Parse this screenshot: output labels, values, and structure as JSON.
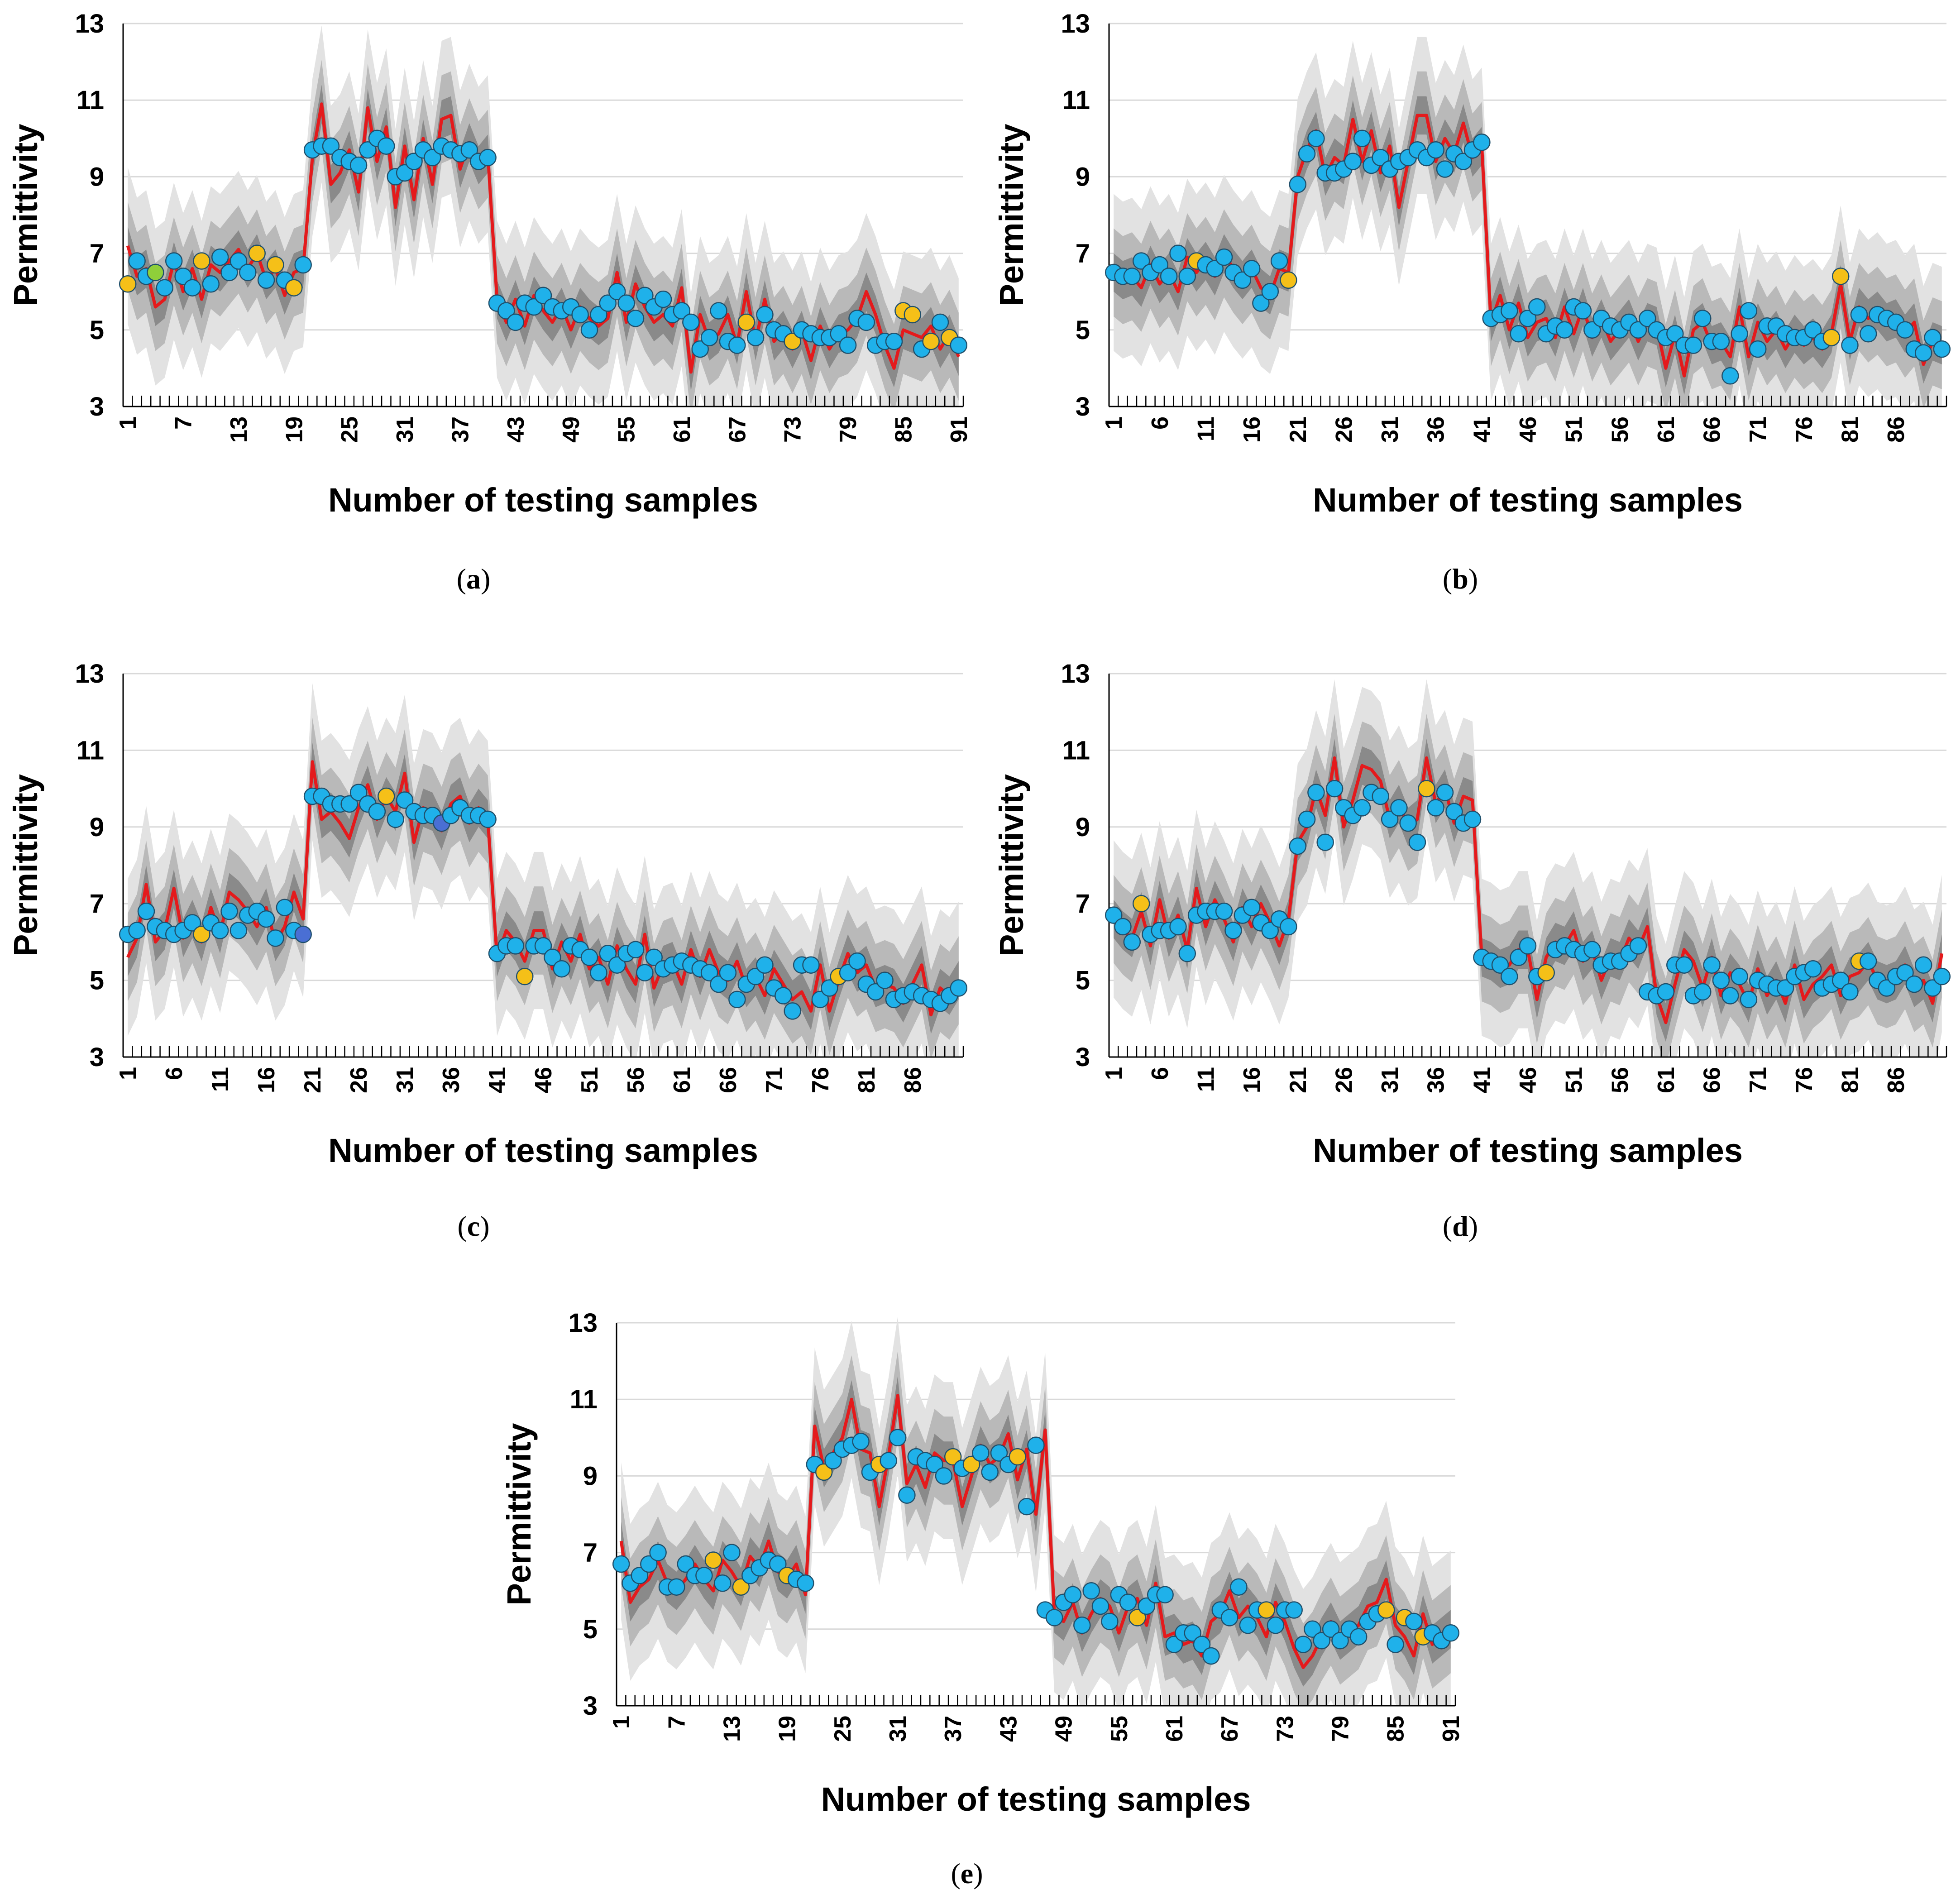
{
  "colors": {
    "outer_band": "#e2e2e2",
    "mid_band": "#b9b9b9",
    "inner_band": "#8a8a8a",
    "mean_line": "#e41a1c",
    "point_blue": "#1fb1ea",
    "point_yellow": "#f5c018",
    "point_green": "#8fcf3a",
    "point_dark_blue": "#4a6fd4",
    "gridline": "#d9d9d9",
    "axis": "#000000"
  },
  "chart_data": [
    {
      "type": "line",
      "panel": "a",
      "caption": "(a)",
      "title": "",
      "xlabel": "Number of testing samples",
      "ylabel": "Permittivity",
      "ylim": [
        3,
        13
      ],
      "yticks": [
        3,
        5,
        7,
        9,
        11,
        13
      ],
      "n": 91,
      "xtick_labels": [
        "1",
        "7",
        "13",
        "19",
        "25",
        "31",
        "37",
        "43",
        "49",
        "55",
        "61",
        "67",
        "73",
        "79",
        "85",
        "91"
      ],
      "xtick_values": [
        1,
        7,
        13,
        19,
        25,
        31,
        37,
        43,
        49,
        55,
        61,
        67,
        73,
        79,
        85,
        91
      ],
      "mean": [
        7.2,
        6.4,
        6.6,
        5.6,
        5.8,
        6.8,
        6.0,
        6.6,
        5.8,
        6.7,
        6.5,
        6.8,
        7.1,
        6.6,
        7.0,
        6.3,
        6.6,
        5.9,
        6.5,
        6.6,
        9.5,
        10.9,
        8.8,
        9.1,
        9.7,
        8.6,
        10.8,
        9.4,
        10.3,
        8.2,
        9.8,
        8.4,
        10.0,
        8.8,
        10.5,
        10.6,
        9.2,
        9.9,
        9.3,
        9.6,
        5.8,
        5.2,
        5.8,
        5.1,
        5.9,
        5.5,
        5.2,
        5.6,
        5.0,
        5.6,
        5.3,
        5.1,
        5.3,
        6.5,
        5.2,
        6.2,
        5.6,
        5.2,
        5.4,
        5.1,
        6.1,
        3.9,
        5.4,
        4.7,
        4.9,
        5.4,
        4.6,
        6.0,
        4.7,
        5.8,
        4.7,
        5.0,
        4.5,
        5.0,
        4.2,
        5.1,
        4.5,
        4.9,
        5.0,
        5.3,
        6.0,
        5.4,
        4.6,
        4.0,
        5.0,
        4.9,
        4.8,
        5.1,
        4.5,
        4.9,
        4.3
      ],
      "points": [
        6.2,
        6.8,
        6.4,
        6.5,
        6.1,
        6.8,
        6.4,
        6.1,
        6.8,
        6.2,
        6.9,
        6.5,
        6.8,
        6.5,
        7.0,
        6.3,
        6.7,
        6.3,
        6.1,
        6.7,
        9.7,
        9.8,
        9.8,
        9.5,
        9.4,
        9.3,
        9.7,
        10.0,
        9.8,
        9.0,
        9.1,
        9.4,
        9.7,
        9.5,
        9.8,
        9.7,
        9.6,
        9.7,
        9.4,
        9.5,
        5.7,
        5.5,
        5.2,
        5.7,
        5.6,
        5.9,
        5.6,
        5.5,
        5.6,
        5.4,
        5.0,
        5.4,
        5.7,
        6.0,
        5.7,
        5.3,
        5.9,
        5.6,
        5.8,
        5.4,
        5.5,
        5.2,
        4.5,
        4.8,
        5.5,
        4.7,
        4.6,
        5.2,
        4.8,
        5.4,
        5.0,
        4.9,
        4.7,
        5.0,
        4.9,
        4.8,
        4.8,
        4.9,
        4.6,
        5.3,
        5.2,
        4.6,
        4.7,
        4.7,
        5.5,
        5.4,
        4.5,
        4.7,
        5.2,
        4.8,
        4.6
      ],
      "point_colors": {
        "1": "yellow",
        "4": "green",
        "9": "yellow",
        "15": "yellow",
        "17": "yellow",
        "19": "yellow",
        "68": "yellow",
        "73": "yellow",
        "85": "yellow",
        "86": "yellow",
        "88": "yellow",
        "90": "yellow"
      }
    },
    {
      "type": "line",
      "panel": "b",
      "caption": "(b)",
      "title": "",
      "xlabel": "Number of testing samples",
      "ylabel": "Permittivity",
      "ylim": [
        3,
        13
      ],
      "yticks": [
        3,
        5,
        7,
        9,
        11,
        13
      ],
      "n": 91,
      "xtick_labels": [
        "1",
        "6",
        "11",
        "16",
        "21",
        "26",
        "31",
        "36",
        "41",
        "46",
        "51",
        "56",
        "61",
        "66",
        "71",
        "76",
        "81",
        "86"
      ],
      "xtick_values": [
        1,
        6,
        11,
        16,
        21,
        26,
        31,
        36,
        41,
        46,
        51,
        56,
        61,
        66,
        71,
        76,
        81,
        86
      ],
      "mean": [
        6.5,
        6.3,
        6.4,
        6.1,
        6.7,
        6.2,
        6.5,
        6.0,
        6.9,
        6.5,
        6.8,
        6.4,
        7.0,
        6.6,
        6.3,
        6.6,
        6.1,
        5.9,
        6.6,
        6.5,
        9.0,
        9.7,
        10.2,
        9.0,
        9.5,
        9.3,
        10.5,
        9.4,
        10.2,
        9.1,
        9.8,
        8.2,
        9.4,
        10.6,
        10.6,
        9.4,
        10.0,
        9.6,
        10.4,
        9.5,
        9.8,
        5.2,
        5.9,
        5.0,
        5.7,
        4.8,
        5.2,
        5.3,
        4.8,
        5.6,
        4.9,
        5.6,
        4.8,
        5.3,
        4.7,
        5.0,
        5.3,
        4.7,
        5.2,
        5.1,
        4.0,
        4.9,
        3.8,
        5.0,
        5.2,
        4.6,
        4.7,
        4.3,
        5.6,
        4.3,
        5.2,
        4.7,
        5.0,
        4.5,
        4.9,
        4.6,
        4.8,
        4.5,
        4.9,
        6.2,
        4.7,
        5.6,
        5.3,
        5.5,
        5.2,
        5.3,
        4.9,
        5.2,
        4.1,
        4.7,
        4.6
      ],
      "points": [
        6.5,
        6.4,
        6.4,
        6.8,
        6.5,
        6.7,
        6.4,
        7.0,
        6.4,
        6.8,
        6.7,
        6.6,
        6.9,
        6.5,
        6.3,
        6.6,
        5.7,
        6.0,
        6.8,
        6.3,
        8.8,
        9.6,
        10.0,
        9.1,
        9.1,
        9.2,
        9.4,
        10.0,
        9.3,
        9.5,
        9.2,
        9.4,
        9.5,
        9.7,
        9.5,
        9.7,
        9.2,
        9.6,
        9.4,
        9.7,
        9.9,
        5.3,
        5.4,
        5.5,
        4.9,
        5.3,
        5.6,
        4.9,
        5.1,
        5.0,
        5.6,
        5.5,
        5.0,
        5.3,
        5.1,
        5.0,
        5.2,
        5.0,
        5.3,
        5.0,
        4.8,
        4.9,
        4.6,
        4.6,
        5.3,
        4.7,
        4.7,
        3.8,
        4.9,
        5.5,
        4.5,
        5.1,
        5.1,
        4.9,
        4.8,
        4.8,
        5.0,
        4.7,
        4.8,
        6.4,
        4.6,
        5.4,
        4.9,
        5.4,
        5.3,
        5.2,
        5.0,
        4.5,
        4.4,
        4.8,
        4.5
      ],
      "point_colors": {
        "10": "yellow",
        "20": "yellow",
        "79": "yellow",
        "80": "yellow"
      }
    },
    {
      "type": "line",
      "panel": "c",
      "caption": "(c)",
      "title": "",
      "xlabel": "Number of testing samples",
      "ylabel": "Permittivity",
      "ylim": [
        3,
        13
      ],
      "yticks": [
        3,
        5,
        7,
        9,
        11,
        13
      ],
      "n": 91,
      "xtick_labels": [
        "1",
        "6",
        "11",
        "16",
        "21",
        "26",
        "31",
        "36",
        "41",
        "46",
        "51",
        "56",
        "61",
        "66",
        "71",
        "76",
        "81",
        "86"
      ],
      "xtick_values": [
        1,
        6,
        11,
        16,
        21,
        26,
        31,
        36,
        41,
        46,
        51,
        56,
        61,
        66,
        71,
        76,
        81,
        86
      ],
      "mean": [
        5.6,
        6.1,
        7.5,
        6.0,
        6.3,
        7.4,
        6.1,
        6.6,
        6.0,
        6.9,
        6.2,
        7.3,
        7.1,
        6.8,
        6.4,
        6.9,
        6.0,
        6.4,
        7.3,
        6.6,
        10.7,
        9.2,
        9.4,
        9.1,
        8.7,
        9.5,
        10.1,
        9.2,
        9.8,
        9.4,
        10.4,
        8.6,
        9.5,
        9.4,
        8.9,
        9.6,
        9.8,
        9.1,
        9.5,
        9.2,
        5.6,
        6.3,
        6.0,
        5.5,
        6.3,
        6.3,
        5.3,
        6.0,
        5.5,
        6.2,
        5.3,
        5.6,
        4.9,
        5.9,
        5.3,
        4.9,
        6.2,
        4.8,
        5.4,
        5.5,
        4.9,
        5.8,
        5.1,
        5.8,
        5.2,
        5.0,
        5.5,
        4.8,
        5.1,
        4.6,
        5.3,
        4.9,
        4.5,
        4.7,
        4.2,
        5.4,
        4.2,
        5.0,
        5.7,
        5.2,
        5.4,
        4.8,
        4.9,
        4.8,
        4.4,
        4.9,
        5.4,
        4.1,
        4.8,
        4.6,
        5.0
      ],
      "points": [
        6.2,
        6.3,
        6.8,
        6.4,
        6.3,
        6.2,
        6.3,
        6.5,
        6.2,
        6.5,
        6.3,
        6.8,
        6.3,
        6.7,
        6.8,
        6.6,
        6.1,
        6.9,
        6.3,
        6.2,
        9.8,
        9.8,
        9.6,
        9.6,
        9.6,
        9.9,
        9.6,
        9.4,
        9.8,
        9.2,
        9.7,
        9.4,
        9.3,
        9.3,
        9.1,
        9.3,
        9.5,
        9.3,
        9.3,
        9.2,
        5.7,
        5.9,
        5.9,
        5.1,
        5.9,
        5.9,
        5.6,
        5.3,
        5.9,
        5.8,
        5.6,
        5.2,
        5.7,
        5.4,
        5.7,
        5.8,
        5.2,
        5.6,
        5.3,
        5.4,
        5.5,
        5.4,
        5.3,
        5.2,
        4.9,
        5.2,
        4.5,
        4.9,
        5.1,
        5.4,
        4.8,
        4.6,
        4.2,
        5.4,
        5.4,
        4.5,
        4.8,
        5.1,
        5.2,
        5.5,
        4.9,
        4.7,
        5.0,
        4.5,
        4.6,
        4.7,
        4.6,
        4.5,
        4.4,
        4.6,
        4.8
      ],
      "point_colors": {
        "9": "yellow",
        "20": "darkblue",
        "29": "yellow",
        "35": "darkblue",
        "44": "yellow",
        "78": "yellow"
      }
    },
    {
      "type": "line",
      "panel": "d",
      "caption": "(d)",
      "title": "",
      "xlabel": "Number of testing samples",
      "ylabel": "Permittivity",
      "ylim": [
        3,
        13
      ],
      "yticks": [
        3,
        5,
        7,
        9,
        11,
        13
      ],
      "n": 91,
      "xtick_labels": [
        "1",
        "6",
        "11",
        "16",
        "21",
        "26",
        "31",
        "36",
        "41",
        "46",
        "51",
        "56",
        "61",
        "66",
        "71",
        "76",
        "81",
        "86"
      ],
      "xtick_values": [
        1,
        6,
        11,
        16,
        21,
        26,
        31,
        36,
        41,
        46,
        51,
        56,
        61,
        66,
        71,
        76,
        81,
        86
      ],
      "mean": [
        6.6,
        6.3,
        6.1,
        6.8,
        5.9,
        7.1,
        6.1,
        6.7,
        5.8,
        7.4,
        6.4,
        7.1,
        6.6,
        6.0,
        6.9,
        6.4,
        7.0,
        6.5,
        5.9,
        6.6,
        8.6,
        9.0,
        10.0,
        9.3,
        10.8,
        9.0,
        9.7,
        10.6,
        10.5,
        10.2,
        9.2,
        9.6,
        9.0,
        9.2,
        10.8,
        9.6,
        10.0,
        9.1,
        9.8,
        9.7,
        5.6,
        5.5,
        5.3,
        5.4,
        5.8,
        5.8,
        4.5,
        5.6,
        6.0,
        5.9,
        6.3,
        5.5,
        5.8,
        5.0,
        5.6,
        5.5,
        6.1,
        5.8,
        6.4,
        4.6,
        3.9,
        4.9,
        5.8,
        5.5,
        4.8,
        5.6,
        4.6,
        5.2,
        4.9,
        4.4,
        5.3,
        4.6,
        5.0,
        4.4,
        5.4,
        4.5,
        4.9,
        5.1,
        5.4,
        4.6,
        5.1,
        5.2,
        5.5,
        5.0,
        4.9,
        5.0,
        5.4,
        4.8,
        5.0,
        4.4,
        5.7
      ],
      "points": [
        6.7,
        6.4,
        6.0,
        7.0,
        6.2,
        6.3,
        6.3,
        6.4,
        5.7,
        6.7,
        6.8,
        6.8,
        6.8,
        6.3,
        6.7,
        6.9,
        6.5,
        6.3,
        6.6,
        6.4,
        8.5,
        9.2,
        9.9,
        8.6,
        10.0,
        9.5,
        9.3,
        9.5,
        9.9,
        9.8,
        9.2,
        9.5,
        9.1,
        8.6,
        10.0,
        9.5,
        9.9,
        9.4,
        9.1,
        9.2,
        5.6,
        5.5,
        5.4,
        5.1,
        5.6,
        5.9,
        5.1,
        5.2,
        5.8,
        5.9,
        5.8,
        5.7,
        5.8,
        5.4,
        5.5,
        5.5,
        5.7,
        5.9,
        4.7,
        4.6,
        4.7,
        5.4,
        5.4,
        4.6,
        4.7,
        5.4,
        5.0,
        4.6,
        5.1,
        4.5,
        5.0,
        4.9,
        4.8,
        4.8,
        5.1,
        5.2,
        5.3,
        4.8,
        4.9,
        5.0,
        4.7,
        5.5,
        5.5,
        5.0,
        4.8,
        5.1,
        5.2,
        4.9,
        5.4,
        4.8,
        5.1
      ],
      "point_colors": {
        "4": "yellow",
        "35": "yellow",
        "48": "yellow",
        "82": "yellow"
      }
    },
    {
      "type": "line",
      "panel": "e",
      "caption": "(e)",
      "title": "",
      "xlabel": "Number of testing samples",
      "ylabel": "Permittivity",
      "ylim": [
        3,
        13
      ],
      "yticks": [
        3,
        5,
        7,
        9,
        11,
        13
      ],
      "n": 91,
      "xtick_labels": [
        "1",
        "7",
        "13",
        "19",
        "25",
        "31",
        "37",
        "43",
        "49",
        "55",
        "61",
        "67",
        "73",
        "79",
        "85",
        "91"
      ],
      "xtick_values": [
        1,
        7,
        13,
        19,
        25,
        31,
        37,
        43,
        49,
        55,
        61,
        67,
        73,
        79,
        85,
        91
      ],
      "mean": [
        7.3,
        5.7,
        6.1,
        6.3,
        6.8,
        6.2,
        6.0,
        6.3,
        6.7,
        6.3,
        6.0,
        6.8,
        6.5,
        6.1,
        6.9,
        6.6,
        7.3,
        6.5,
        6.3,
        6.7,
        5.9,
        10.3,
        9.2,
        9.6,
        10.0,
        11.0,
        9.7,
        9.6,
        8.2,
        9.5,
        11.1,
        8.8,
        9.3,
        8.7,
        9.6,
        9.4,
        9.4,
        8.2,
        9.0,
        9.8,
        9.3,
        9.5,
        10.1,
        8.9,
        9.7,
        8.0,
        10.2,
        5.4,
        5.2,
        5.7,
        4.9,
        5.4,
        5.8,
        5.6,
        4.9,
        5.6,
        5.8,
        5.1,
        6.2,
        4.8,
        4.9,
        4.6,
        4.7,
        4.3,
        5.2,
        5.4,
        6.0,
        5.3,
        5.6,
        5.3,
        4.8,
        5.7,
        5.2,
        4.5,
        4.0,
        4.3,
        4.8,
        5.2,
        4.7,
        4.9,
        5.1,
        5.6,
        5.7,
        6.3,
        5.1,
        4.8,
        4.3,
        5.4,
        4.6,
        4.8,
        5.0
      ],
      "points": [
        6.7,
        6.2,
        6.4,
        6.7,
        7.0,
        6.1,
        6.1,
        6.7,
        6.4,
        6.4,
        6.8,
        6.2,
        7.0,
        6.1,
        6.4,
        6.6,
        6.8,
        6.7,
        6.4,
        6.3,
        6.2,
        9.3,
        9.1,
        9.4,
        9.7,
        9.8,
        9.9,
        9.1,
        9.3,
        9.4,
        10.0,
        8.5,
        9.5,
        9.4,
        9.3,
        9.0,
        9.5,
        9.2,
        9.3,
        9.6,
        9.1,
        9.6,
        9.3,
        9.5,
        8.2,
        9.8,
        5.5,
        5.3,
        5.7,
        5.9,
        5.1,
        6.0,
        5.6,
        5.2,
        5.9,
        5.7,
        5.3,
        5.6,
        5.9,
        5.9,
        4.6,
        4.9,
        4.9,
        4.6,
        4.3,
        5.5,
        5.3,
        6.1,
        5.1,
        5.5,
        5.5,
        5.1,
        5.5,
        5.5,
        4.6,
        5.0,
        4.7,
        5.0,
        4.7,
        5.0,
        4.8,
        5.2,
        5.4,
        5.5,
        4.6,
        5.3,
        5.2,
        4.8,
        4.9,
        4.7,
        4.9
      ],
      "point_colors": {
        "11": "yellow",
        "14": "yellow",
        "19": "yellow",
        "23": "yellow",
        "29": "yellow",
        "37": "yellow",
        "39": "yellow",
        "44": "yellow",
        "57": "yellow",
        "71": "yellow",
        "84": "yellow",
        "86": "yellow",
        "88": "yellow"
      }
    }
  ]
}
